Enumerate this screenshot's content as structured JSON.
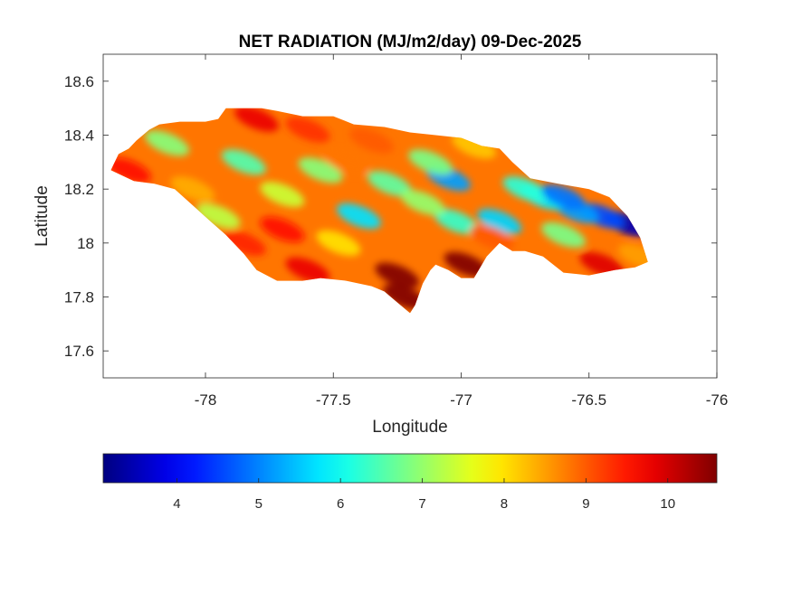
{
  "chart_data": {
    "type": "heatmap",
    "title": "NET RADIATION (MJ/m2/day) 09-Dec-2025",
    "xlabel": "Longitude",
    "ylabel": "Latitude",
    "xlim": [
      -78.4,
      -76
    ],
    "ylim": [
      17.5,
      18.7
    ],
    "x_ticks": [
      -78,
      -77.5,
      -77,
      -76.5,
      -76
    ],
    "x_tick_labels": [
      "-78",
      "-77.5",
      "-77",
      "-76.5",
      "-76"
    ],
    "y_ticks": [
      17.6,
      17.8,
      18,
      18.2,
      18.4,
      18.6
    ],
    "y_tick_labels": [
      "17.6",
      "17.8",
      "18",
      "18.2",
      "18.4",
      "18.6"
    ],
    "grid": false,
    "colormap": "jet",
    "colorbar": {
      "placement": "bottom",
      "range": [
        3.1,
        10.6
      ],
      "ticks": [
        4,
        5,
        6,
        7,
        8,
        9,
        10
      ],
      "tick_labels": [
        "4",
        "5",
        "6",
        "7",
        "8",
        "9",
        "10"
      ]
    },
    "background_value": 8.8,
    "region_outline_lonlat": [
      [
        -78.37,
        18.27
      ],
      [
        -78.34,
        18.33
      ],
      [
        -78.3,
        18.35
      ],
      [
        -78.27,
        18.38
      ],
      [
        -78.22,
        18.42
      ],
      [
        -78.18,
        18.44
      ],
      [
        -78.1,
        18.45
      ],
      [
        -78.0,
        18.45
      ],
      [
        -77.95,
        18.46
      ],
      [
        -77.92,
        18.5
      ],
      [
        -77.85,
        18.5
      ],
      [
        -77.78,
        18.5
      ],
      [
        -77.72,
        18.49
      ],
      [
        -77.62,
        18.47
      ],
      [
        -77.5,
        18.47
      ],
      [
        -77.42,
        18.44
      ],
      [
        -77.3,
        18.43
      ],
      [
        -77.2,
        18.41
      ],
      [
        -77.1,
        18.4
      ],
      [
        -77.0,
        18.39
      ],
      [
        -76.92,
        18.36
      ],
      [
        -76.85,
        18.35
      ],
      [
        -76.8,
        18.3
      ],
      [
        -76.73,
        18.24
      ],
      [
        -76.62,
        18.22
      ],
      [
        -76.5,
        18.2
      ],
      [
        -76.42,
        18.17
      ],
      [
        -76.35,
        18.1
      ],
      [
        -76.3,
        18.02
      ],
      [
        -76.27,
        17.93
      ],
      [
        -76.32,
        17.91
      ],
      [
        -76.4,
        17.9
      ],
      [
        -76.5,
        17.88
      ],
      [
        -76.6,
        17.89
      ],
      [
        -76.68,
        17.95
      ],
      [
        -76.75,
        17.97
      ],
      [
        -76.8,
        17.97
      ],
      [
        -76.85,
        18.0
      ],
      [
        -76.9,
        17.95
      ],
      [
        -76.95,
        17.87
      ],
      [
        -77.0,
        17.87
      ],
      [
        -77.05,
        17.9
      ],
      [
        -77.1,
        17.92
      ],
      [
        -77.12,
        17.9
      ],
      [
        -77.15,
        17.85
      ],
      [
        -77.18,
        17.77
      ],
      [
        -77.2,
        17.74
      ],
      [
        -77.25,
        17.78
      ],
      [
        -77.3,
        17.82
      ],
      [
        -77.35,
        17.84
      ],
      [
        -77.45,
        17.86
      ],
      [
        -77.55,
        17.87
      ],
      [
        -77.62,
        17.86
      ],
      [
        -77.72,
        17.86
      ],
      [
        -77.8,
        17.9
      ],
      [
        -77.85,
        17.96
      ],
      [
        -77.92,
        18.03
      ],
      [
        -77.98,
        18.08
      ],
      [
        -78.05,
        18.14
      ],
      [
        -78.12,
        18.2
      ],
      [
        -78.2,
        18.22
      ],
      [
        -78.28,
        18.23
      ]
    ],
    "values_grid_note_free": true,
    "value_anchors": [
      {
        "lon": -76.35,
        "lat": 18.07,
        "value": 3.5
      },
      {
        "lon": -76.45,
        "lat": 18.1,
        "value": 4.6
      },
      {
        "lon": -76.55,
        "lat": 18.12,
        "value": 5.2
      },
      {
        "lon": -76.68,
        "lat": 18.17,
        "value": 5.8
      },
      {
        "lon": -76.75,
        "lat": 18.2,
        "value": 6.2
      },
      {
        "lon": -76.6,
        "lat": 18.03,
        "value": 6.8
      },
      {
        "lon": -76.85,
        "lat": 18.08,
        "value": 5.6
      },
      {
        "lon": -77.02,
        "lat": 18.08,
        "value": 6.3
      },
      {
        "lon": -77.4,
        "lat": 18.1,
        "value": 5.7
      },
      {
        "lon": -77.28,
        "lat": 18.22,
        "value": 6.6
      },
      {
        "lon": -77.05,
        "lat": 18.24,
        "value": 5.2
      },
      {
        "lon": -77.12,
        "lat": 18.3,
        "value": 6.8
      },
      {
        "lon": -77.55,
        "lat": 18.27,
        "value": 6.9
      },
      {
        "lon": -77.85,
        "lat": 18.3,
        "value": 6.5
      },
      {
        "lon": -78.15,
        "lat": 18.37,
        "value": 6.9
      },
      {
        "lon": -77.7,
        "lat": 18.18,
        "value": 7.4
      },
      {
        "lon": -77.95,
        "lat": 18.1,
        "value": 7.3
      },
      {
        "lon": -77.6,
        "lat": 18.42,
        "value": 9.3
      },
      {
        "lon": -77.25,
        "lat": 17.88,
        "value": 10.6
      },
      {
        "lon": -77.22,
        "lat": 17.8,
        "value": 10.6
      },
      {
        "lon": -76.98,
        "lat": 17.92,
        "value": 10.6
      },
      {
        "lon": -78.3,
        "lat": 18.27,
        "value": 9.6
      },
      {
        "lon": -77.8,
        "lat": 18.46,
        "value": 9.8
      },
      {
        "lon": -77.35,
        "lat": 18.38,
        "value": 9.0
      },
      {
        "lon": -76.95,
        "lat": 18.36,
        "value": 8.2
      },
      {
        "lon": -77.6,
        "lat": 17.9,
        "value": 9.8
      },
      {
        "lon": -77.85,
        "lat": 18.0,
        "value": 9.4
      },
      {
        "lon": -76.45,
        "lat": 17.92,
        "value": 9.9
      },
      {
        "lon": -76.3,
        "lat": 17.95,
        "value": 8.5
      },
      {
        "lon": -76.88,
        "lat": 18.02,
        "value": 9.0
      },
      {
        "lon": -77.7,
        "lat": 18.05,
        "value": 9.6
      },
      {
        "lon": -78.05,
        "lat": 18.2,
        "value": 8.4
      },
      {
        "lon": -77.45,
        "lat": 18.3,
        "value": 8.8
      },
      {
        "lon": -77.48,
        "lat": 18.0,
        "value": 8.0
      },
      {
        "lon": -77.15,
        "lat": 18.15,
        "value": 7.0
      },
      {
        "lon": -76.6,
        "lat": 18.17,
        "value": 4.9
      }
    ]
  }
}
